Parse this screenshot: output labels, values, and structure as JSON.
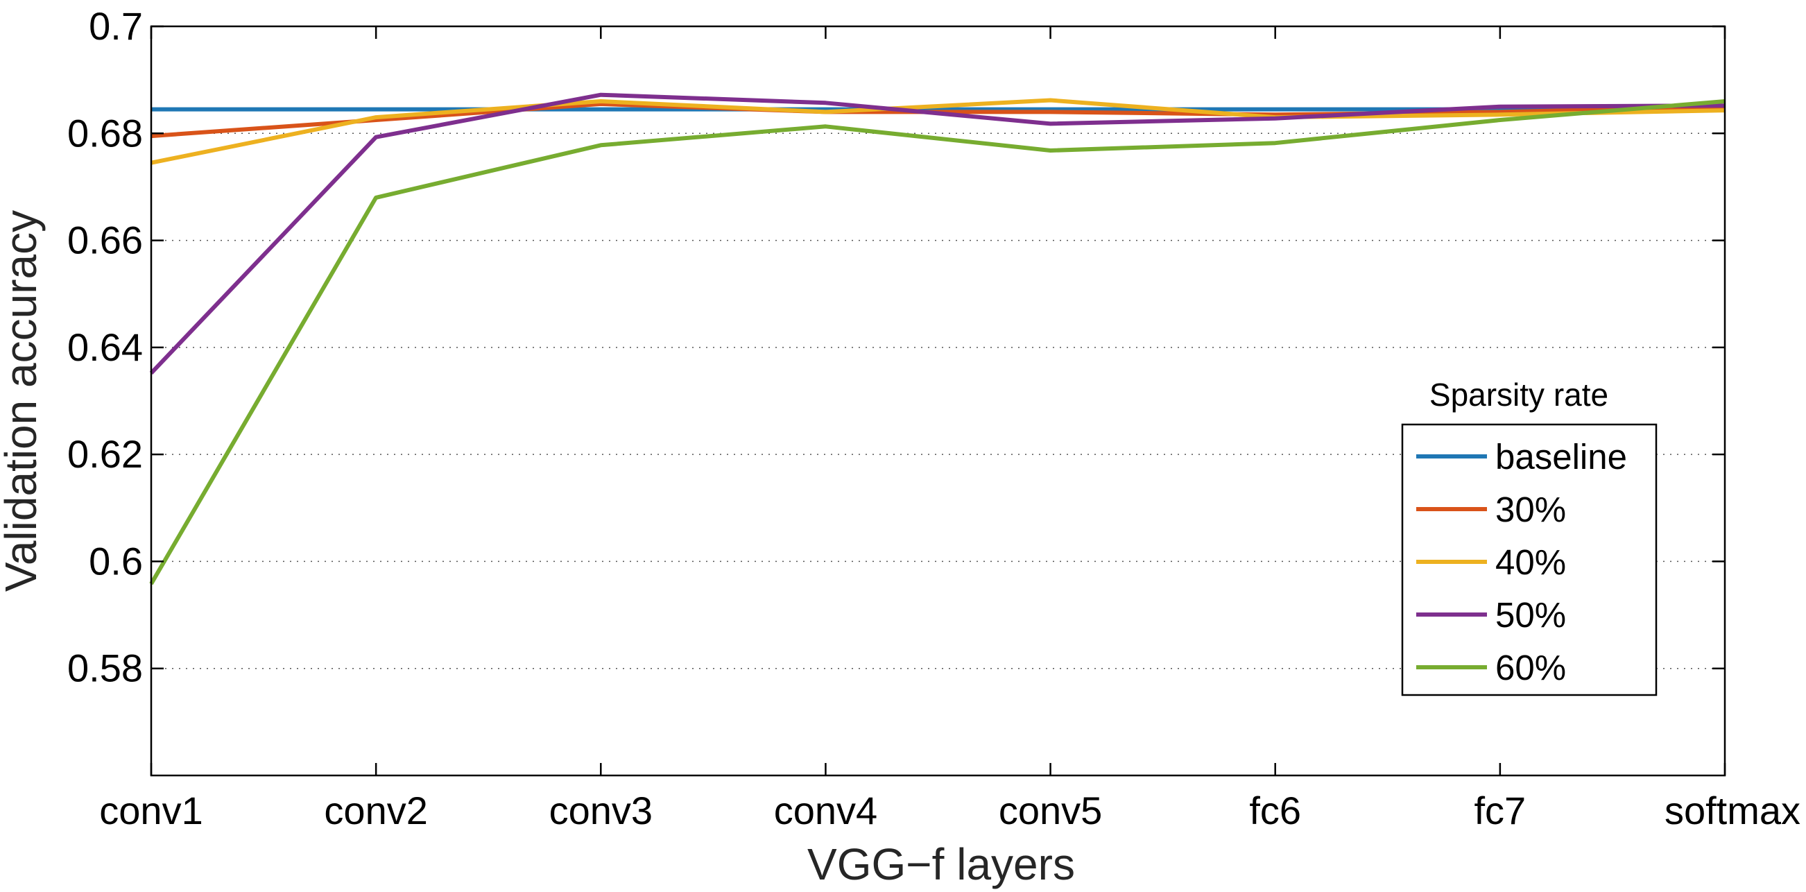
{
  "chart_data": {
    "type": "line",
    "title": "",
    "xlabel": "VGG−f layers",
    "ylabel": "Validation accuracy",
    "categories": [
      "conv1",
      "conv2",
      "conv3",
      "conv4",
      "conv5",
      "fc6",
      "fc7",
      "softmax"
    ],
    "ylim": [
      0.56,
      0.7
    ],
    "yticks": [
      0.58,
      0.6,
      0.62,
      0.64,
      0.66,
      0.68,
      0.7
    ],
    "ytick_labels": [
      "0.58",
      "0.6",
      "0.62",
      "0.64",
      "0.66",
      "0.68",
      "0.7"
    ],
    "grid": "horizontal dotted",
    "legend_title": "Sparsity rate",
    "legend_position": "right",
    "series": [
      {
        "name": "baseline",
        "color": "#1f77b4",
        "values": [
          0.6845,
          0.6845,
          0.6845,
          0.6845,
          0.6845,
          0.6845,
          0.6845,
          0.6845
        ]
      },
      {
        "name": "30%",
        "color": "#d95319",
        "values": [
          0.6795,
          0.6825,
          0.6855,
          0.684,
          0.684,
          0.6835,
          0.684,
          0.685
        ]
      },
      {
        "name": "40%",
        "color": "#edb120",
        "values": [
          0.6745,
          0.683,
          0.686,
          0.684,
          0.6862,
          0.683,
          0.6835,
          0.6843
        ]
      },
      {
        "name": "50%",
        "color": "#7e2f8e",
        "values": [
          0.6352,
          0.6793,
          0.6872,
          0.6857,
          0.6818,
          0.6828,
          0.685,
          0.6852
        ]
      },
      {
        "name": "60%",
        "color": "#77ac30",
        "values": [
          0.5958,
          0.668,
          0.6778,
          0.6813,
          0.6768,
          0.6782,
          0.6825,
          0.686
        ]
      }
    ]
  }
}
